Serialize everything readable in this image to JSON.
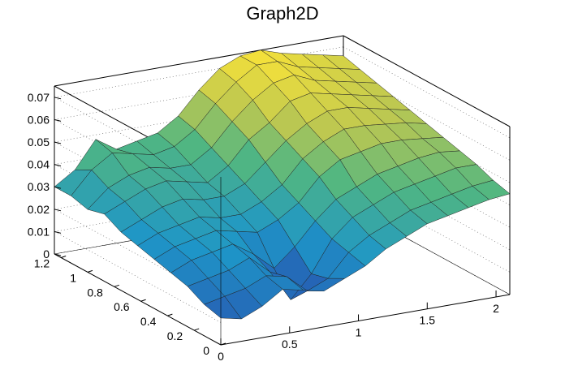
{
  "chart_data": {
    "type": "surface3d",
    "title": "Graph2D",
    "xlabel": "",
    "ylabel": "",
    "zlabel": "",
    "xlim": [
      0,
      2.1
    ],
    "ylim": [
      0,
      1.25
    ],
    "zlim": [
      0,
      0.075
    ],
    "x_ticks": [
      "0",
      "0.5",
      "1",
      "1.5",
      "2"
    ],
    "x_tick_values": [
      0,
      0.5,
      1,
      1.5,
      2
    ],
    "y_ticks": [
      "0",
      "0.2",
      "0.4",
      "0.6",
      "0.8",
      "1",
      "1.2"
    ],
    "y_tick_values": [
      0,
      0.2,
      0.4,
      0.6,
      0.8,
      1,
      1.2
    ],
    "z_ticks": [
      "0",
      "0.01",
      "0.02",
      "0.03",
      "0.04",
      "0.05",
      "0.06",
      "0.07"
    ],
    "z_tick_values": [
      0,
      0.01,
      0.02,
      0.03,
      0.04,
      0.05,
      0.06,
      0.07
    ],
    "grid": true,
    "colormap": "viridis-like (blue to yellow)",
    "colors": {
      "low": "#2b3ea8",
      "mid": "#4fb58a",
      "high": "#f5e13a"
    },
    "surface_grid_x": [
      0,
      0.15,
      0.3,
      0.45,
      0.6,
      0.75,
      0.9,
      1.05,
      1.2,
      1.35,
      1.5,
      1.65,
      1.8,
      1.95,
      2.1
    ],
    "surface_grid_y": [
      0,
      0.125,
      0.25,
      0.375,
      0.5,
      0.625,
      0.75,
      0.875,
      1.0,
      1.125,
      1.25
    ],
    "surface_z": [
      [
        0.012,
        0.01,
        0.014,
        0.02,
        0.018,
        0.016,
        0.02,
        0.024,
        0.03,
        0.034,
        0.038,
        0.04,
        0.042,
        0.044,
        0.045
      ],
      [
        0.014,
        0.016,
        0.018,
        0.022,
        0.02,
        0.012,
        0.016,
        0.026,
        0.032,
        0.036,
        0.04,
        0.042,
        0.044,
        0.046,
        0.047
      ],
      [
        0.018,
        0.02,
        0.022,
        0.026,
        0.018,
        0.004,
        0.014,
        0.028,
        0.036,
        0.04,
        0.044,
        0.046,
        0.048,
        0.05,
        0.05
      ],
      [
        0.02,
        0.024,
        0.026,
        0.028,
        0.022,
        0.014,
        0.022,
        0.032,
        0.04,
        0.044,
        0.048,
        0.05,
        0.052,
        0.053,
        0.052
      ],
      [
        0.022,
        0.026,
        0.028,
        0.03,
        0.028,
        0.026,
        0.03,
        0.036,
        0.046,
        0.052,
        0.054,
        0.056,
        0.056,
        0.055,
        0.054
      ],
      [
        0.024,
        0.028,
        0.03,
        0.032,
        0.03,
        0.03,
        0.034,
        0.04,
        0.05,
        0.056,
        0.06,
        0.06,
        0.059,
        0.058,
        0.056
      ],
      [
        0.026,
        0.03,
        0.034,
        0.036,
        0.034,
        0.034,
        0.038,
        0.046,
        0.054,
        0.06,
        0.064,
        0.064,
        0.062,
        0.06,
        0.058
      ],
      [
        0.03,
        0.034,
        0.038,
        0.04,
        0.038,
        0.036,
        0.042,
        0.052,
        0.058,
        0.066,
        0.068,
        0.066,
        0.064,
        0.062,
        0.06
      ],
      [
        0.028,
        0.036,
        0.04,
        0.042,
        0.04,
        0.04,
        0.046,
        0.056,
        0.064,
        0.07,
        0.072,
        0.068,
        0.066,
        0.064,
        0.062
      ],
      [
        0.03,
        0.04,
        0.046,
        0.044,
        0.042,
        0.044,
        0.05,
        0.06,
        0.068,
        0.074,
        0.074,
        0.07,
        0.068,
        0.066,
        0.064
      ],
      [
        0.03,
        0.036,
        0.048,
        0.042,
        0.044,
        0.046,
        0.052,
        0.062,
        0.07,
        0.074,
        0.075,
        0.072,
        0.07,
        0.068,
        0.066
      ]
    ]
  }
}
